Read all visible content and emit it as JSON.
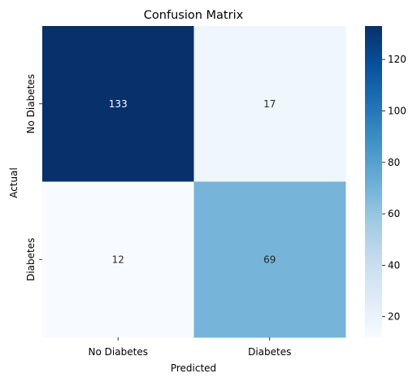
{
  "chart_data": {
    "type": "heatmap",
    "title": "Confusion Matrix",
    "xlabel": "Predicted",
    "ylabel": "Actual",
    "x_categories": [
      "No Diabetes",
      "Diabetes"
    ],
    "y_categories": [
      "No Diabetes",
      "Diabetes"
    ],
    "values": [
      [
        133,
        17
      ],
      [
        12,
        69
      ]
    ],
    "colormap": "Blues",
    "color_range": [
      12,
      133
    ],
    "colorbar_ticks": [
      20,
      40,
      60,
      80,
      100,
      120
    ],
    "annotated": true,
    "grid": false
  }
}
